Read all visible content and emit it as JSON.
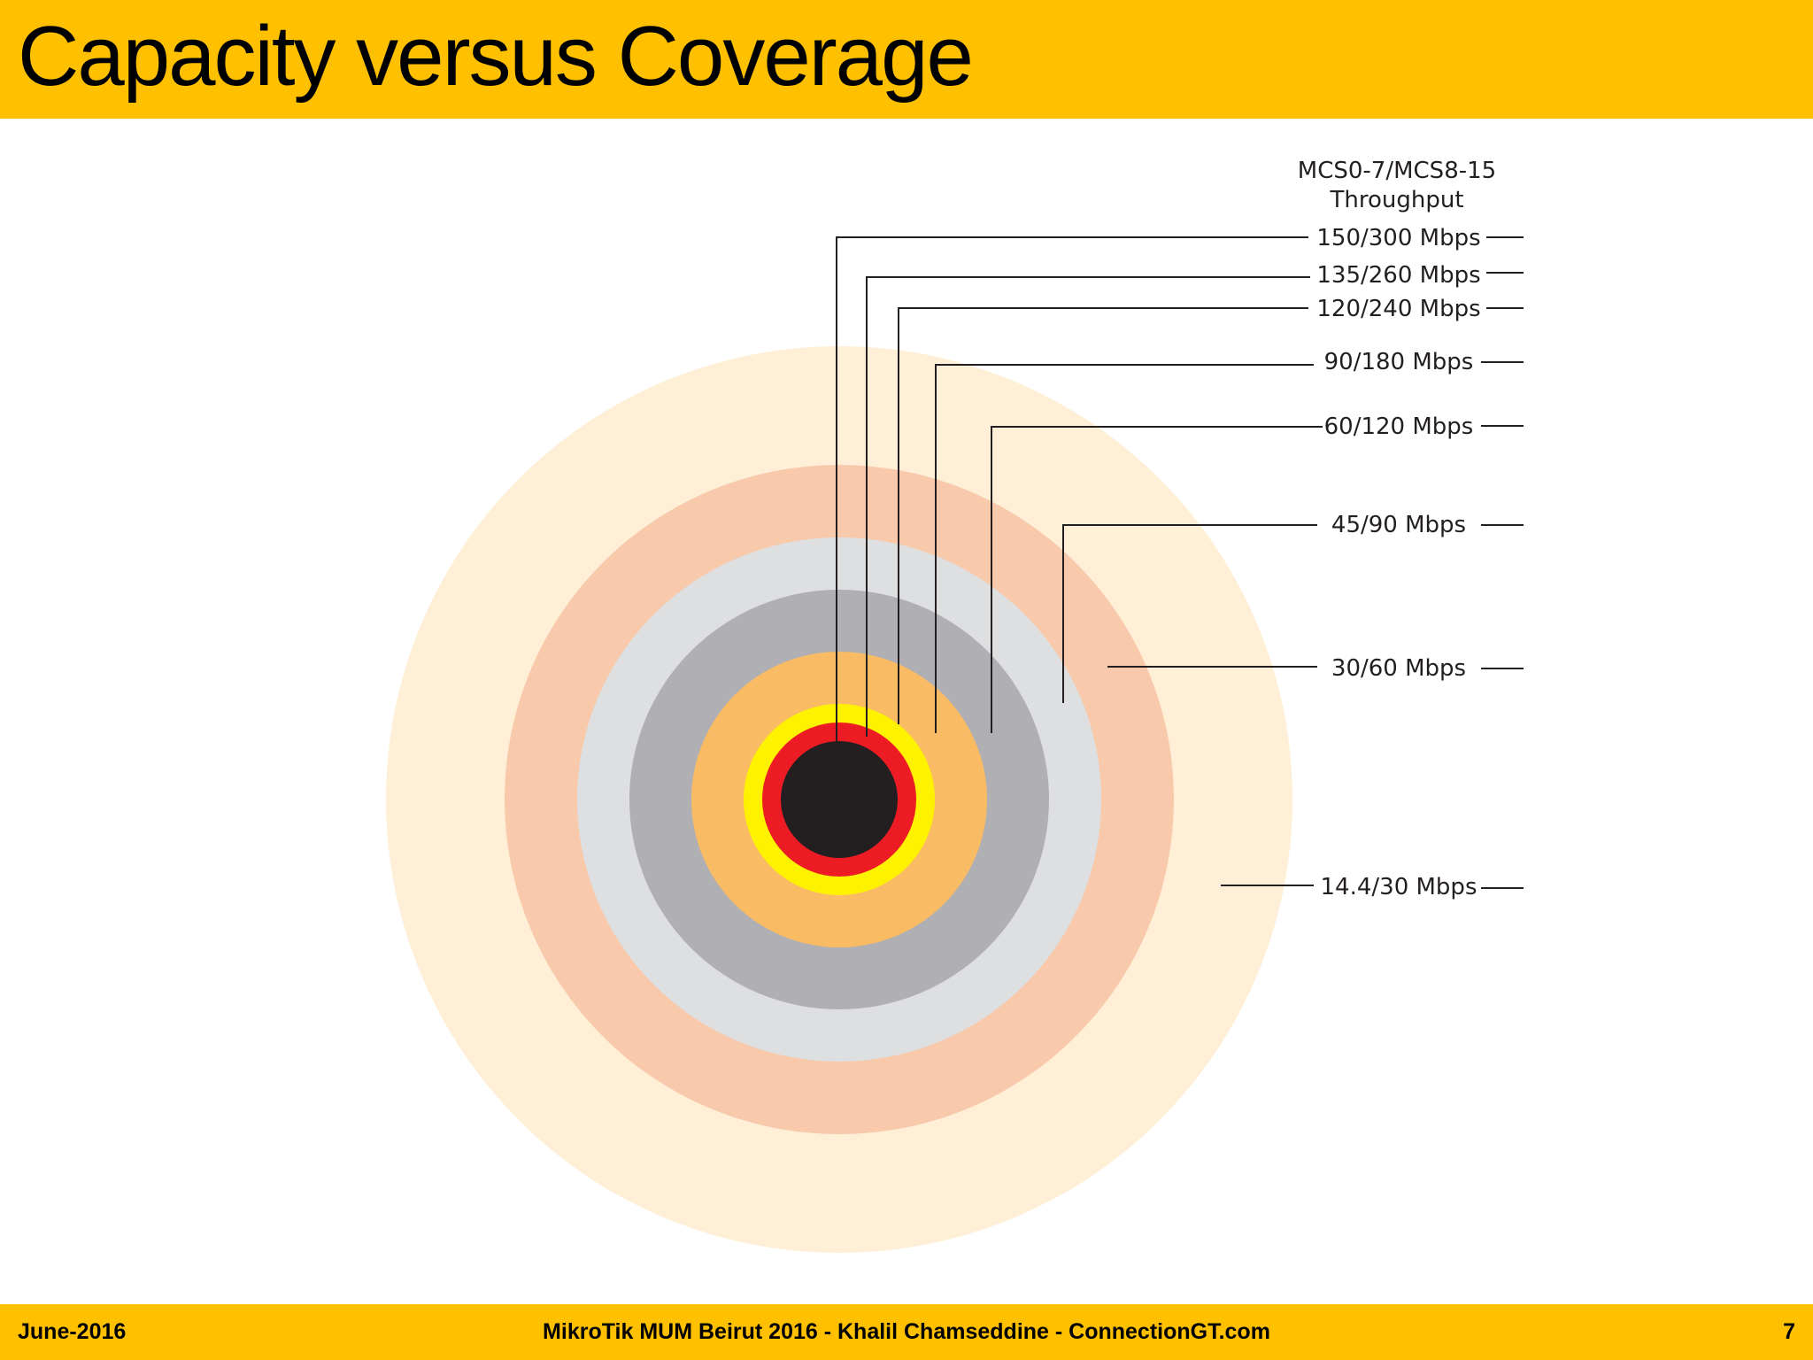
{
  "slide": {
    "title": "Capacity versus Coverage"
  },
  "diagram": {
    "legend_title_line1": "MCS0-7/MCS8-15",
    "legend_title_line2": "Throughput",
    "rings": [
      {
        "label": "150/300 Mbps",
        "color": "#231F20"
      },
      {
        "label": "135/260 Mbps",
        "color": "#ED1C24"
      },
      {
        "label": "120/240 Mbps",
        "color": "#FFF200"
      },
      {
        "label": "90/180 Mbps",
        "color": "#F9BB63"
      },
      {
        "label": "60/120 Mbps",
        "color": "#B0AFB3"
      },
      {
        "label": "45/90 Mbps",
        "color": "#DEDFE1"
      },
      {
        "label": "30/60 Mbps",
        "color": "#F8C9AB"
      },
      {
        "label": "14.4/30 Mbps",
        "color": "#FEEFD6"
      }
    ]
  },
  "footer": {
    "date": "June-2016",
    "center": "MikroTik MUM Beirut 2016 - Khalil Chamseddine - ConnectionGT.com",
    "page_number": "7"
  },
  "colors": {
    "accent_bar": "#FFC000"
  }
}
